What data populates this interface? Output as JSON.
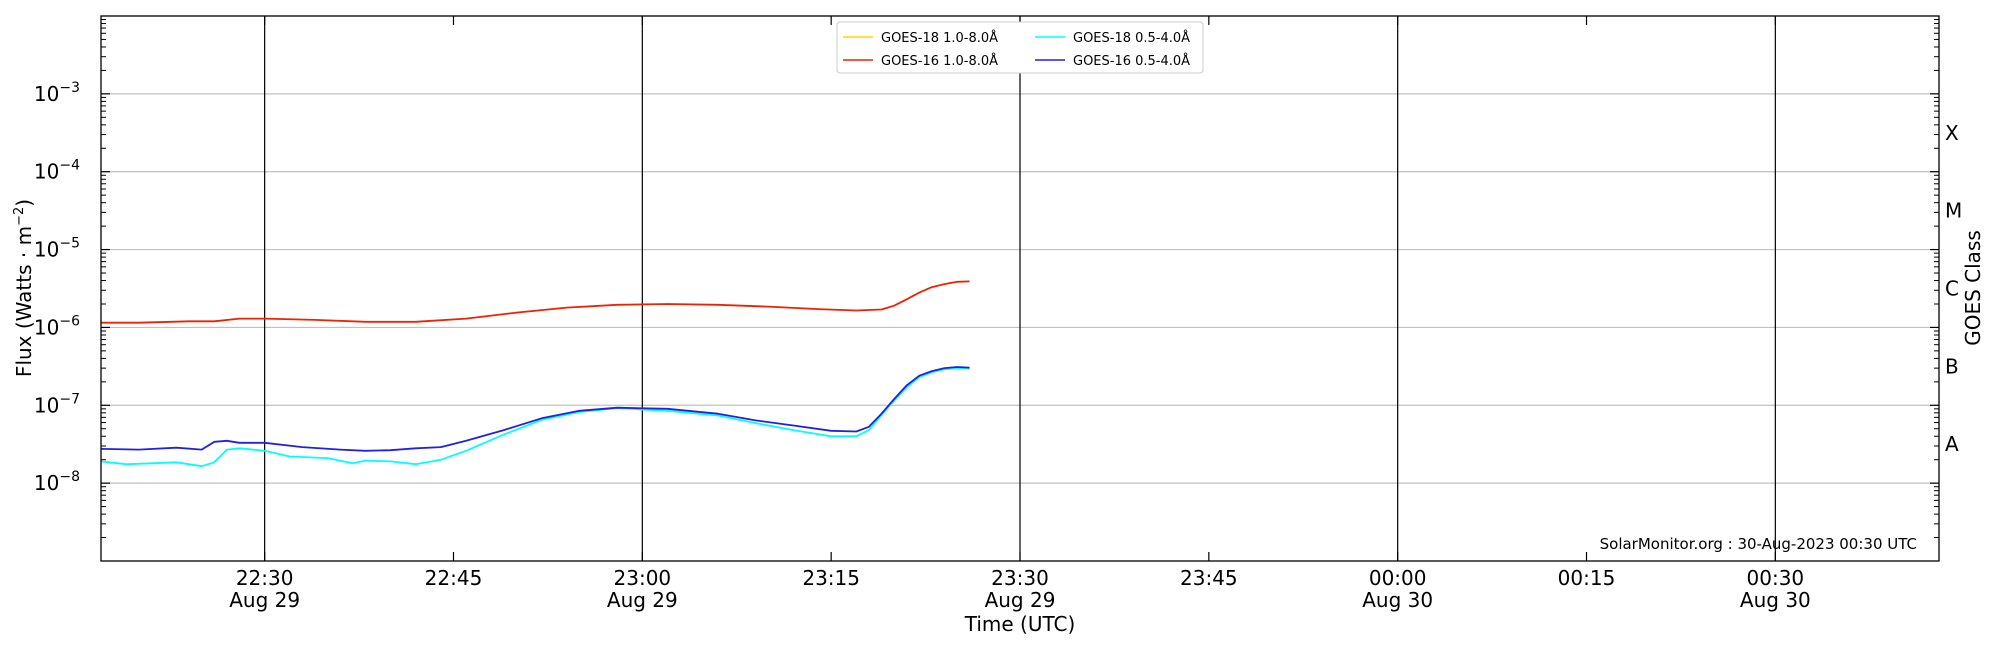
{
  "chart_data": {
    "type": "line",
    "xlabel": "Time (UTC)",
    "ylabel_main": "Flux (Watts · m",
    "ylabel_exp": "−2",
    "ylabel_close": ")",
    "y2label": "GOES Class",
    "y_scale": "log",
    "ylim": [
      1e-09,
      0.01
    ],
    "xlim": [
      "2023-08-29T22:17",
      "2023-08-30T00:43"
    ],
    "grid": "horizontal major lines",
    "legend_position": "top-center",
    "watermark": "SolarMonitor.org : 30-Aug-2023 00:30 UTC",
    "x_ticks": [
      {
        "t": "2023-08-29T22:30",
        "time": "22:30",
        "date": "Aug 29",
        "vline": true
      },
      {
        "t": "2023-08-29T22:45",
        "time": "22:45",
        "date": "",
        "vline": false
      },
      {
        "t": "2023-08-29T23:00",
        "time": "23:00",
        "date": "Aug 29",
        "vline": true
      },
      {
        "t": "2023-08-29T23:15",
        "time": "23:15",
        "date": "",
        "vline": false
      },
      {
        "t": "2023-08-29T23:30",
        "time": "23:30",
        "date": "Aug 29",
        "vline": true
      },
      {
        "t": "2023-08-29T23:45",
        "time": "23:45",
        "date": "",
        "vline": false
      },
      {
        "t": "2023-08-30T00:00",
        "time": "00:00",
        "date": "Aug 30",
        "vline": true
      },
      {
        "t": "2023-08-30T00:15",
        "time": "00:15",
        "date": "",
        "vline": false
      },
      {
        "t": "2023-08-30T00:30",
        "time": "00:30",
        "date": "Aug 30",
        "vline": true
      }
    ],
    "y_ticks": [
      {
        "value": 1e-08,
        "mantissa": "10",
        "exp": "−8"
      },
      {
        "value": 1e-07,
        "mantissa": "10",
        "exp": "−7"
      },
      {
        "value": 1e-06,
        "mantissa": "10",
        "exp": "−6"
      },
      {
        "value": 1e-05,
        "mantissa": "10",
        "exp": "−5"
      },
      {
        "value": 0.0001,
        "mantissa": "10",
        "exp": "−4"
      },
      {
        "value": 0.001,
        "mantissa": "10",
        "exp": "−3"
      }
    ],
    "class_labels": [
      {
        "label": "A",
        "value": 3.16e-08
      },
      {
        "label": "B",
        "value": 3.16e-07
      },
      {
        "label": "C",
        "value": 3.16e-06
      },
      {
        "label": "M",
        "value": 3.16e-05
      },
      {
        "label": "X",
        "value": 0.000316
      }
    ],
    "series": [
      {
        "name": "GOES-18 1.0-8.0Å",
        "color": "#ffd700",
        "x": [],
        "values": []
      },
      {
        "name": "GOES-16 1.0-8.0Å",
        "color": "#ee2200",
        "x": [
          "2023-08-29T22:17",
          "2023-08-29T22:20",
          "2023-08-29T22:24",
          "2023-08-29T22:26",
          "2023-08-29T22:28",
          "2023-08-29T22:30",
          "2023-08-29T22:34",
          "2023-08-29T22:38",
          "2023-08-29T22:42",
          "2023-08-29T22:46",
          "2023-08-29T22:50",
          "2023-08-29T22:54",
          "2023-08-29T22:58",
          "2023-08-29T23:02",
          "2023-08-29T23:06",
          "2023-08-29T23:10",
          "2023-08-29T23:14",
          "2023-08-29T23:17",
          "2023-08-29T23:19",
          "2023-08-29T23:20",
          "2023-08-29T23:21",
          "2023-08-29T23:22",
          "2023-08-29T23:23",
          "2023-08-29T23:24",
          "2023-08-29T23:25",
          "2023-08-29T23:26"
        ],
        "values": [
          1.15e-06,
          1.15e-06,
          1.2e-06,
          1.2e-06,
          1.3e-06,
          1.3e-06,
          1.25e-06,
          1.18e-06,
          1.18e-06,
          1.3e-06,
          1.55e-06,
          1.8e-06,
          1.95e-06,
          2e-06,
          1.95e-06,
          1.85e-06,
          1.72e-06,
          1.65e-06,
          1.7e-06,
          1.9e-06,
          2.3e-06,
          2.8e-06,
          3.3e-06,
          3.6e-06,
          3.85e-06,
          3.9e-06
        ]
      },
      {
        "name": "GOES-18 0.5-4.0Å",
        "color": "#00ffff",
        "x": [
          "2023-08-29T22:17",
          "2023-08-29T22:19",
          "2023-08-29T22:21",
          "2023-08-29T22:23",
          "2023-08-29T22:25",
          "2023-08-29T22:26",
          "2023-08-29T22:27",
          "2023-08-29T22:28",
          "2023-08-29T22:30",
          "2023-08-29T22:32",
          "2023-08-29T22:35",
          "2023-08-29T22:37",
          "2023-08-29T22:38",
          "2023-08-29T22:40",
          "2023-08-29T22:42",
          "2023-08-29T22:44",
          "2023-08-29T22:46",
          "2023-08-29T22:49",
          "2023-08-29T22:52",
          "2023-08-29T22:55",
          "2023-08-29T22:58",
          "2023-08-29T23:02",
          "2023-08-29T23:06",
          "2023-08-29T23:09",
          "2023-08-29T23:12",
          "2023-08-29T23:15",
          "2023-08-29T23:17",
          "2023-08-29T23:18",
          "2023-08-29T23:19",
          "2023-08-29T23:20",
          "2023-08-29T23:21",
          "2023-08-29T23:22",
          "2023-08-29T23:23",
          "2023-08-29T23:24",
          "2023-08-29T23:25",
          "2023-08-29T23:26"
        ],
        "values": [
          1.9e-08,
          1.75e-08,
          1.8e-08,
          1.85e-08,
          1.65e-08,
          1.85e-08,
          2.7e-08,
          2.8e-08,
          2.6e-08,
          2.2e-08,
          2.1e-08,
          1.8e-08,
          1.95e-08,
          1.9e-08,
          1.75e-08,
          2e-08,
          2.6e-08,
          4.2e-08,
          6.5e-08,
          8.2e-08,
          9.2e-08,
          8.5e-08,
          7.4e-08,
          5.9e-08,
          4.8e-08,
          4e-08,
          4e-08,
          4.8e-08,
          7.5e-08,
          1.15e-07,
          1.7e-07,
          2.3e-07,
          2.65e-07,
          2.9e-07,
          3e-07,
          2.95e-07
        ]
      },
      {
        "name": "GOES-16 0.5-4.0Å",
        "color": "#2222dd",
        "x": [
          "2023-08-29T22:17",
          "2023-08-29T22:20",
          "2023-08-29T22:23",
          "2023-08-29T22:25",
          "2023-08-29T22:26",
          "2023-08-29T22:27",
          "2023-08-29T22:28",
          "2023-08-29T22:30",
          "2023-08-29T22:33",
          "2023-08-29T22:36",
          "2023-08-29T22:38",
          "2023-08-29T22:40",
          "2023-08-29T22:42",
          "2023-08-29T22:44",
          "2023-08-29T22:46",
          "2023-08-29T22:49",
          "2023-08-29T22:52",
          "2023-08-29T22:55",
          "2023-08-29T22:58",
          "2023-08-29T23:02",
          "2023-08-29T23:06",
          "2023-08-29T23:09",
          "2023-08-29T23:12",
          "2023-08-29T23:15",
          "2023-08-29T23:17",
          "2023-08-29T23:18",
          "2023-08-29T23:19",
          "2023-08-29T23:20",
          "2023-08-29T23:21",
          "2023-08-29T23:22",
          "2023-08-29T23:23",
          "2023-08-29T23:24",
          "2023-08-29T23:25",
          "2023-08-29T23:26"
        ],
        "values": [
          2.75e-08,
          2.7e-08,
          2.85e-08,
          2.7e-08,
          3.4e-08,
          3.5e-08,
          3.3e-08,
          3.3e-08,
          2.9e-08,
          2.7e-08,
          2.6e-08,
          2.65e-08,
          2.8e-08,
          2.9e-08,
          3.5e-08,
          4.8e-08,
          6.8e-08,
          8.5e-08,
          9.3e-08,
          9e-08,
          7.8e-08,
          6.4e-08,
          5.5e-08,
          4.7e-08,
          4.6e-08,
          5.3e-08,
          7.8e-08,
          1.2e-07,
          1.8e-07,
          2.4e-07,
          2.75e-07,
          3e-07,
          3.1e-07,
          3.05e-07
        ]
      }
    ]
  }
}
